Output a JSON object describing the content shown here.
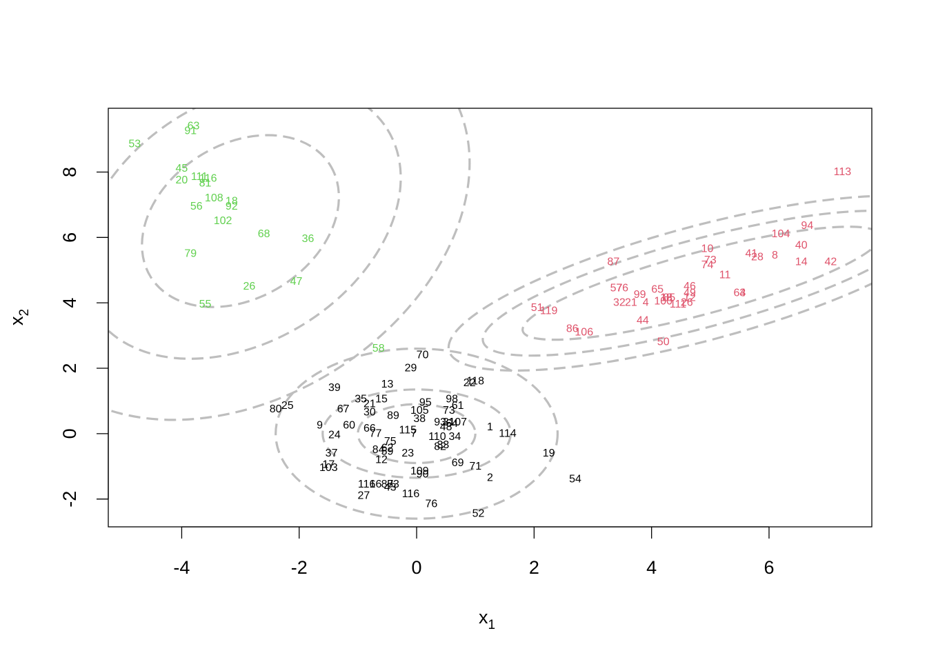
{
  "chart_data": {
    "type": "scatter",
    "title": "",
    "xlabel": "x",
    "xlabel_sub": "1",
    "ylabel": "x",
    "ylabel_sub": "2",
    "xlim": [
      -5.25,
      7.75
    ],
    "ylim": [
      -2.85,
      9.95
    ],
    "xticks": [
      -4,
      -2,
      0,
      2,
      4,
      6
    ],
    "yticks": [
      -2,
      0,
      2,
      4,
      6,
      8
    ],
    "grid": false,
    "contour_color": "#bebebe",
    "series": [
      {
        "color": "#000000",
        "points": [
          {
            "label": "70",
            "x": 0.1,
            "y": 2.4
          },
          {
            "label": "29",
            "x": -0.1,
            "y": 2.0
          },
          {
            "label": "13",
            "x": -0.5,
            "y": 1.5
          },
          {
            "label": "118",
            "x": 1.0,
            "y": 1.6
          },
          {
            "label": "22",
            "x": 0.9,
            "y": 1.55
          },
          {
            "label": "39",
            "x": -1.4,
            "y": 1.4
          },
          {
            "label": "35",
            "x": -0.95,
            "y": 1.05
          },
          {
            "label": "15",
            "x": -0.6,
            "y": 1.05
          },
          {
            "label": "21",
            "x": -0.8,
            "y": 0.9
          },
          {
            "label": "95",
            "x": 0.15,
            "y": 0.95
          },
          {
            "label": "98",
            "x": 0.6,
            "y": 1.05
          },
          {
            "label": "61",
            "x": 0.7,
            "y": 0.85
          },
          {
            "label": "80",
            "x": -2.4,
            "y": 0.75
          },
          {
            "label": "25",
            "x": -2.2,
            "y": 0.85
          },
          {
            "label": "67",
            "x": -1.25,
            "y": 0.75
          },
          {
            "label": "30",
            "x": -0.8,
            "y": 0.65
          },
          {
            "label": "105",
            "x": 0.05,
            "y": 0.7
          },
          {
            "label": "73",
            "x": 0.55,
            "y": 0.7
          },
          {
            "label": "89",
            "x": -0.4,
            "y": 0.55
          },
          {
            "label": "38",
            "x": 0.05,
            "y": 0.45
          },
          {
            "label": "9",
            "x": -1.65,
            "y": 0.25
          },
          {
            "label": "60",
            "x": -1.15,
            "y": 0.25
          },
          {
            "label": "93",
            "x": 0.4,
            "y": 0.35
          },
          {
            "label": "31",
            "x": 0.55,
            "y": 0.35
          },
          {
            "label": "107",
            "x": 0.7,
            "y": 0.35
          },
          {
            "label": "64",
            "x": 0.6,
            "y": 0.3
          },
          {
            "label": "48",
            "x": 0.5,
            "y": 0.2
          },
          {
            "label": "66",
            "x": -0.8,
            "y": 0.15
          },
          {
            "label": "115",
            "x": -0.15,
            "y": 0.1
          },
          {
            "label": "1",
            "x": 1.25,
            "y": 0.2
          },
          {
            "label": "114",
            "x": 1.55,
            "y": 0
          },
          {
            "label": "24",
            "x": -1.4,
            "y": -0.05
          },
          {
            "label": "77",
            "x": -0.7,
            "y": 0
          },
          {
            "label": "7",
            "x": -0.05,
            "y": 0
          },
          {
            "label": "110",
            "x": 0.35,
            "y": -0.1
          },
          {
            "label": "34",
            "x": 0.65,
            "y": -0.1
          },
          {
            "label": "75",
            "x": -0.45,
            "y": -0.25
          },
          {
            "label": "33",
            "x": 0.45,
            "y": -0.35
          },
          {
            "label": "82",
            "x": 0.4,
            "y": -0.4
          },
          {
            "label": "84",
            "x": -0.65,
            "y": -0.5
          },
          {
            "label": "62",
            "x": -0.5,
            "y": -0.45
          },
          {
            "label": "59",
            "x": -0.5,
            "y": -0.55
          },
          {
            "label": "23",
            "x": -0.15,
            "y": -0.6
          },
          {
            "label": "19",
            "x": 2.25,
            "y": -0.6
          },
          {
            "label": "37",
            "x": -1.45,
            "y": -0.6
          },
          {
            "label": "12",
            "x": -0.6,
            "y": -0.8
          },
          {
            "label": "69",
            "x": 0.7,
            "y": -0.9
          },
          {
            "label": "71",
            "x": 1.0,
            "y": -1.0
          },
          {
            "label": "17",
            "x": -1.5,
            "y": -0.95
          },
          {
            "label": "103",
            "x": -1.5,
            "y": -1.05
          },
          {
            "label": "109",
            "x": 0.05,
            "y": -1.15
          },
          {
            "label": "90",
            "x": 0.1,
            "y": -1.25
          },
          {
            "label": "2",
            "x": 1.25,
            "y": -1.35
          },
          {
            "label": "54",
            "x": 2.7,
            "y": -1.4
          },
          {
            "label": "116",
            "x": -0.85,
            "y": -1.55
          },
          {
            "label": "16",
            "x": -0.7,
            "y": -1.55
          },
          {
            "label": "87",
            "x": -0.5,
            "y": -1.55
          },
          {
            "label": "83",
            "x": -0.4,
            "y": -1.55
          },
          {
            "label": "43",
            "x": -0.45,
            "y": -1.65
          },
          {
            "label": "27",
            "x": -0.9,
            "y": -1.9
          },
          {
            "label": "116",
            "x": -0.1,
            "y": -1.85
          },
          {
            "label": "76",
            "x": 0.25,
            "y": -2.15
          },
          {
            "label": "52",
            "x": 1.05,
            "y": -2.45
          }
        ]
      },
      {
        "color": "#df536b",
        "points": [
          {
            "label": "113",
            "x": 7.25,
            "y": 8.0
          },
          {
            "label": "94",
            "x": 6.65,
            "y": 6.35
          },
          {
            "label": "104",
            "x": 6.2,
            "y": 6.1
          },
          {
            "label": "40",
            "x": 6.55,
            "y": 5.75
          },
          {
            "label": "10",
            "x": 4.95,
            "y": 5.65
          },
          {
            "label": "41",
            "x": 5.7,
            "y": 5.5
          },
          {
            "label": "28",
            "x": 5.8,
            "y": 5.4
          },
          {
            "label": "8",
            "x": 6.1,
            "y": 5.45
          },
          {
            "label": "73",
            "x": 5.0,
            "y": 5.3
          },
          {
            "label": "74",
            "x": 4.95,
            "y": 5.15
          },
          {
            "label": "87",
            "x": 3.35,
            "y": 5.25
          },
          {
            "label": "14",
            "x": 6.55,
            "y": 5.25
          },
          {
            "label": "42",
            "x": 7.05,
            "y": 5.25
          },
          {
            "label": "11",
            "x": 5.25,
            "y": 4.85
          },
          {
            "label": "57",
            "x": 3.4,
            "y": 4.45
          },
          {
            "label": "76",
            "x": 3.5,
            "y": 4.45
          },
          {
            "label": "65",
            "x": 4.1,
            "y": 4.4
          },
          {
            "label": "46",
            "x": 4.65,
            "y": 4.5
          },
          {
            "label": "49",
            "x": 4.65,
            "y": 4.3
          },
          {
            "label": "12",
            "x": 4.65,
            "y": 4.15
          },
          {
            "label": "99",
            "x": 3.8,
            "y": 4.25
          },
          {
            "label": "18",
            "x": 4.25,
            "y": 4.15
          },
          {
            "label": "85",
            "x": 4.3,
            "y": 4.15
          },
          {
            "label": "64",
            "x": 5.5,
            "y": 4.3
          },
          {
            "label": "3",
            "x": 5.55,
            "y": 4.3
          },
          {
            "label": "32",
            "x": 3.45,
            "y": 4.0
          },
          {
            "label": "21",
            "x": 3.65,
            "y": 4.0
          },
          {
            "label": "4",
            "x": 3.9,
            "y": 4.0
          },
          {
            "label": "100",
            "x": 4.2,
            "y": 4.05
          },
          {
            "label": "111",
            "x": 4.45,
            "y": 3.95
          },
          {
            "label": "26",
            "x": 4.6,
            "y": 4.0
          },
          {
            "label": "51",
            "x": 2.05,
            "y": 3.85
          },
          {
            "label": "119",
            "x": 2.25,
            "y": 3.75
          },
          {
            "label": "44",
            "x": 3.85,
            "y": 3.45
          },
          {
            "label": "86",
            "x": 2.65,
            "y": 3.2
          },
          {
            "label": "106",
            "x": 2.85,
            "y": 3.1
          },
          {
            "label": "50",
            "x": 4.2,
            "y": 2.8
          }
        ]
      },
      {
        "color": "#61d04f",
        "points": [
          {
            "label": "63",
            "x": -3.8,
            "y": 9.4
          },
          {
            "label": "91",
            "x": -3.85,
            "y": 9.25
          },
          {
            "label": "53",
            "x": -4.8,
            "y": 8.85
          },
          {
            "label": "45",
            "x": -4.0,
            "y": 8.1
          },
          {
            "label": "111",
            "x": -3.7,
            "y": 7.85
          },
          {
            "label": "116",
            "x": -3.55,
            "y": 7.8
          },
          {
            "label": "20",
            "x": -4.0,
            "y": 7.75
          },
          {
            "label": "81",
            "x": -3.6,
            "y": 7.65
          },
          {
            "label": "108",
            "x": -3.45,
            "y": 7.2
          },
          {
            "label": "18",
            "x": -3.15,
            "y": 7.1
          },
          {
            "label": "56",
            "x": -3.75,
            "y": 6.95
          },
          {
            "label": "92",
            "x": -3.15,
            "y": 6.95
          },
          {
            "label": "102",
            "x": -3.3,
            "y": 6.5
          },
          {
            "label": "68",
            "x": -2.6,
            "y": 6.1
          },
          {
            "label": "36",
            "x": -1.85,
            "y": 5.95
          },
          {
            "label": "79",
            "x": -3.85,
            "y": 5.5
          },
          {
            "label": "26",
            "x": -2.85,
            "y": 4.5
          },
          {
            "label": "47",
            "x": -2.05,
            "y": 4.65
          },
          {
            "label": "55",
            "x": -3.6,
            "y": 3.95
          },
          {
            "label": "58",
            "x": -0.65,
            "y": 2.6
          }
        ]
      }
    ],
    "contours": [
      {
        "cx": -3.0,
        "cy": 6.5,
        "rx": [
          1.8,
          2.95,
          4.2
        ],
        "ry": [
          2.35,
          3.7,
          5.4
        ],
        "rotate_deg": -32
      },
      {
        "cx": 4.85,
        "cy": 4.6,
        "rx": [
          3.15,
          3.85,
          4.45
        ],
        "ry": [
          0.95,
          1.35,
          1.75
        ],
        "rotate_deg": -15
      },
      {
        "cx": 0.0,
        "cy": 0.0,
        "rx": [
          1.0,
          1.6,
          2.4
        ],
        "ry": [
          0.9,
          1.35,
          2.6
        ],
        "rotate_deg": 0
      }
    ]
  }
}
